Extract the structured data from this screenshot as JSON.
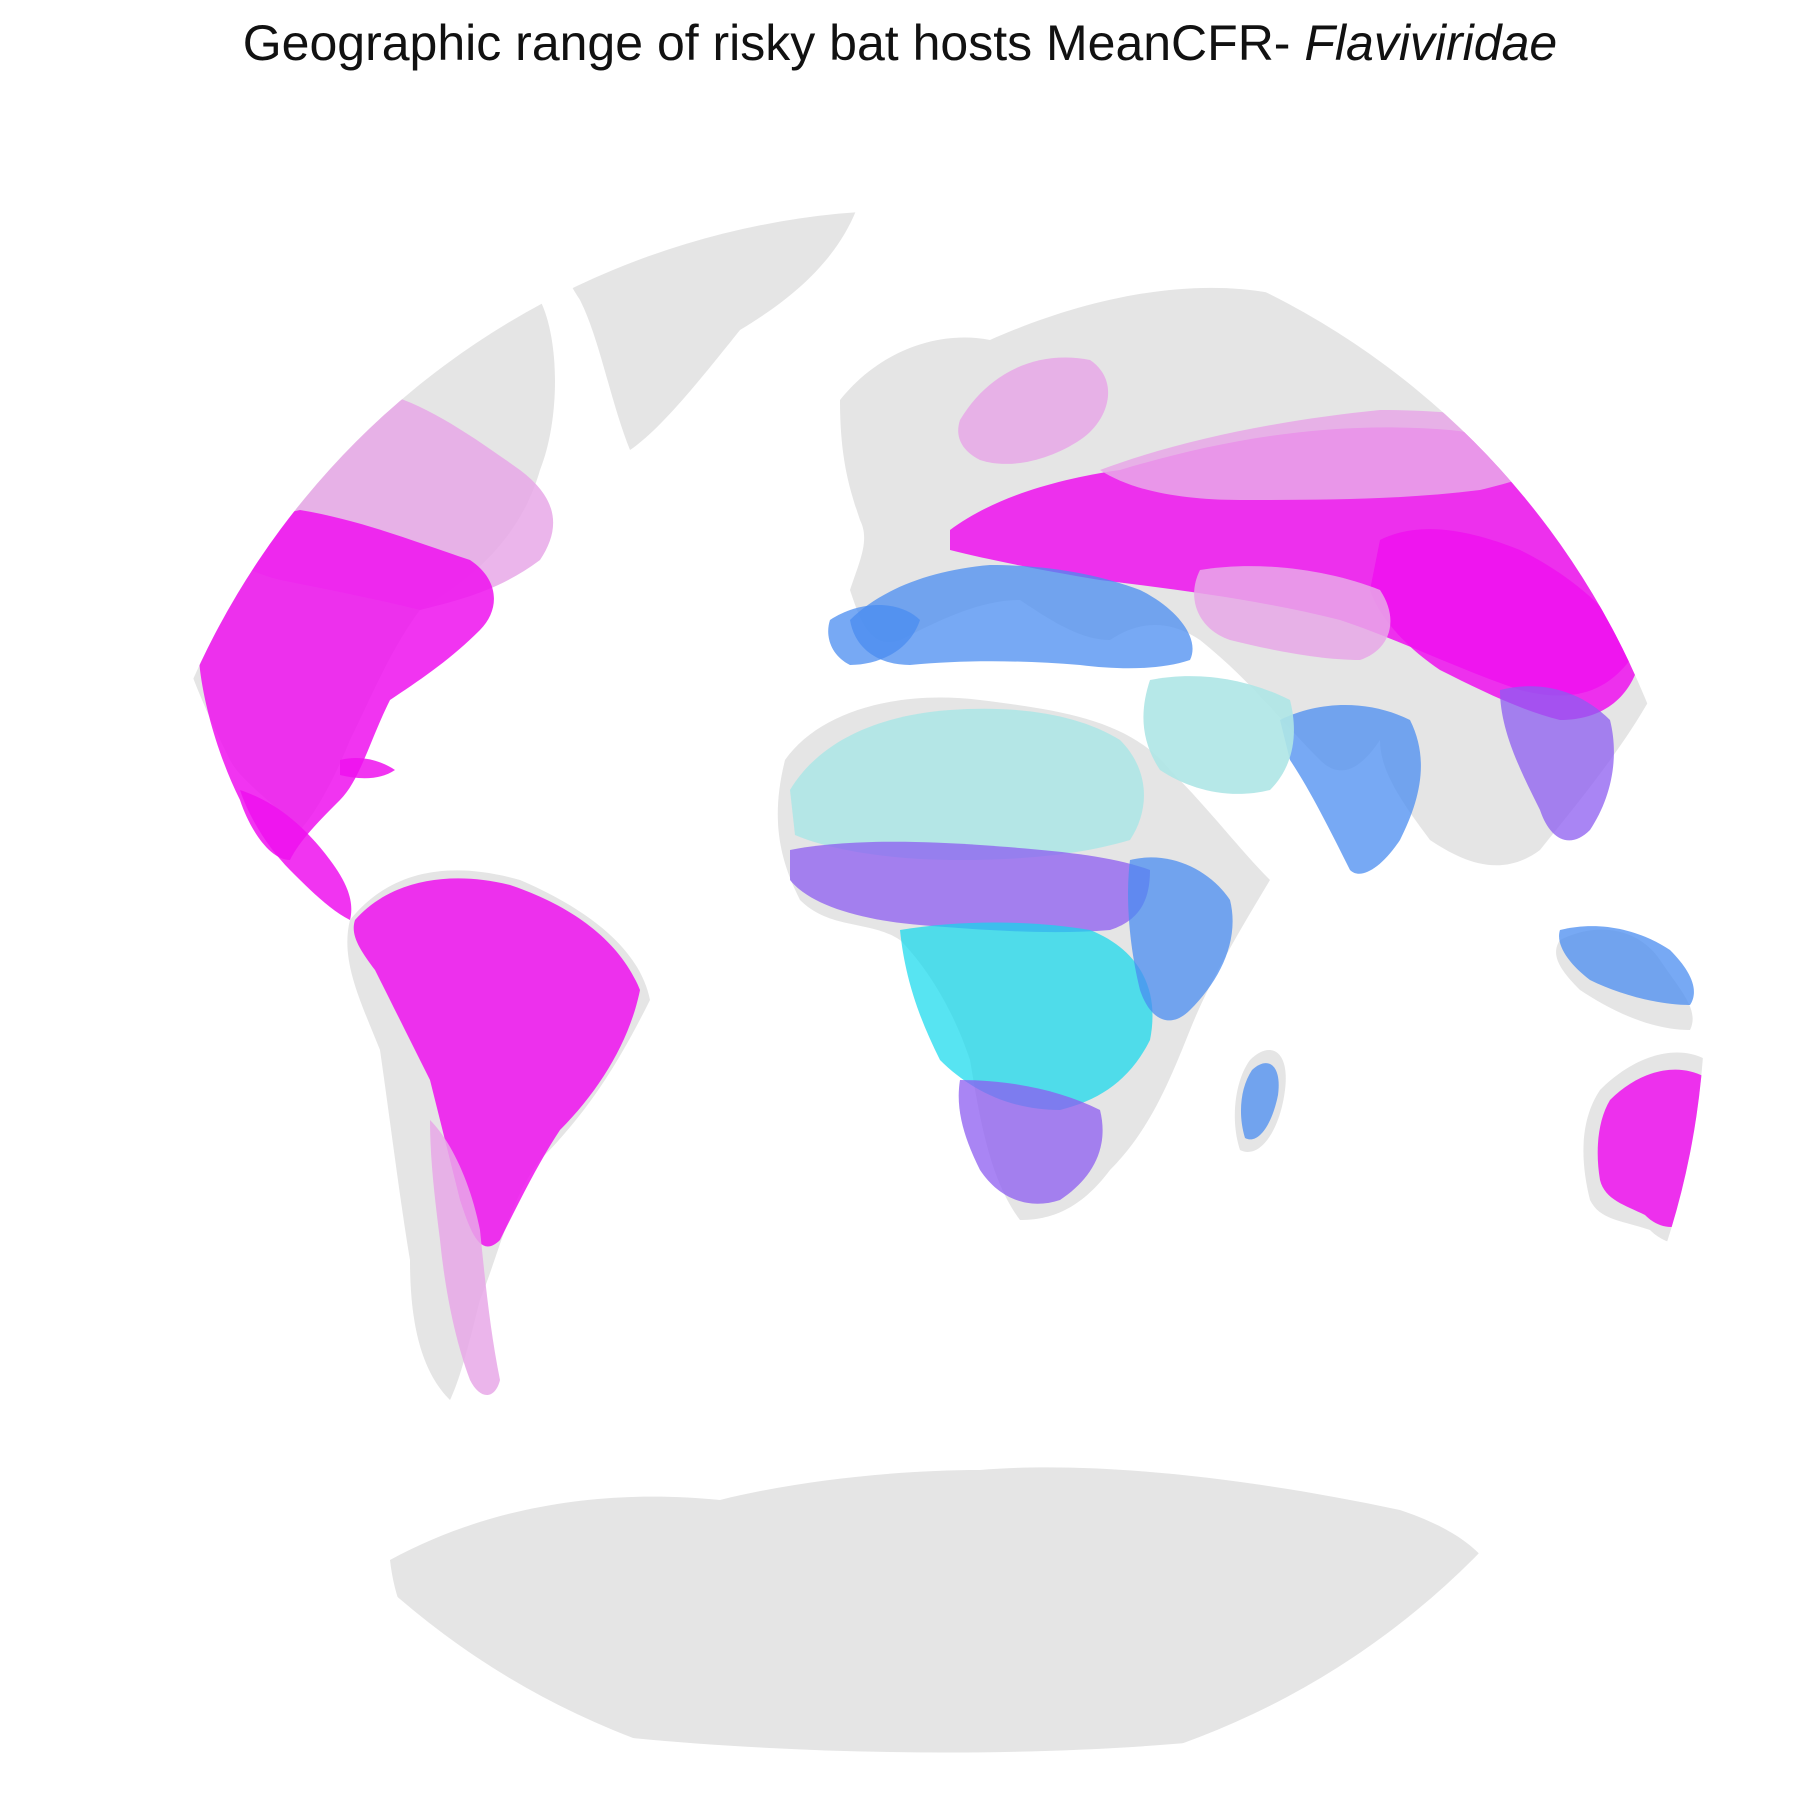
{
  "title": {
    "main": "Geographic range of risky bat hosts MeanCFR- ",
    "taxon": "Flaviviridae"
  },
  "map": {
    "projection": "globe (orthographic-like world view)",
    "land_color": "#e5e5e5",
    "ocean_color": "#ffffff",
    "range_colors": {
      "high": "#ee11ee",
      "light_high": "#e8a8e8",
      "mid": "#8c5cf0",
      "blue": "#4a8cf0",
      "cyan": "#10d8ec",
      "light_cyan": "#aee6e6"
    }
  }
}
